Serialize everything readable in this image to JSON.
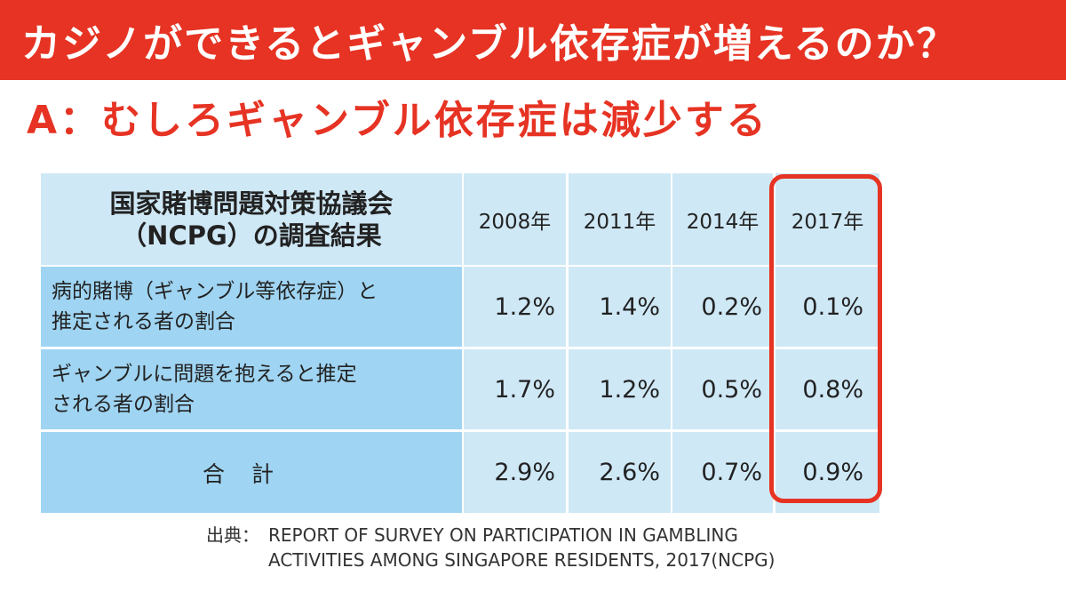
{
  "colors": {
    "accent": "#e63323",
    "header_bg": "#cfe8f6",
    "label_bg": "#9fd4f2"
  },
  "title": "カジノができるとギャンブル依存症が増えるのか？",
  "subtitle": "A：むしろギャンブル依存症は減少する",
  "table": {
    "corner_line1": "国家賭博問題対策協議会",
    "corner_line2": "（NCPG）の調査結果",
    "years": [
      "2008年",
      "2011年",
      "2014年",
      "2017年"
    ],
    "rows": [
      {
        "label_line1": "病的賭博（ギャンブル等依存症）と",
        "label_line2": "推定される者の割合",
        "values": [
          "1.2%",
          "1.4%",
          "0.2%",
          "0.1%"
        ]
      },
      {
        "label_line1": "ギャンブルに問題を抱えると推定",
        "label_line2": "される者の割合",
        "values": [
          "1.7%",
          "1.2%",
          "0.5%",
          "0.8%"
        ]
      },
      {
        "label_line1": "合計",
        "label_line2": "",
        "values": [
          "2.9%",
          "2.6%",
          "0.7%",
          "0.9%"
        ]
      }
    ],
    "highlighted_year": "2017年"
  },
  "source": {
    "prefix": "出典：",
    "line1": "REPORT OF SURVEY ON PARTICIPATION IN GAMBLING",
    "line2": "ACTIVITIES AMONG SINGAPORE RESIDENTS, 2017(NCPG)"
  }
}
